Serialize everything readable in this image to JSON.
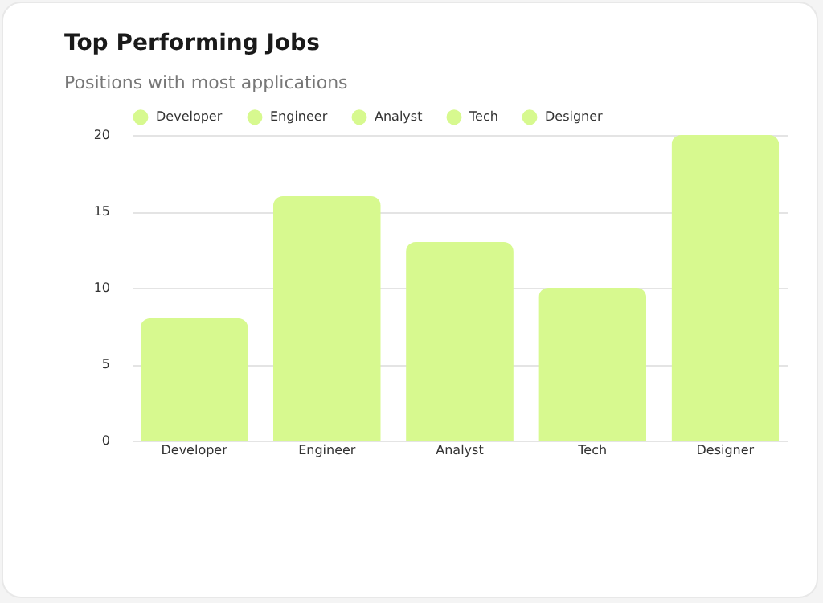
{
  "chart_data": {
    "type": "bar",
    "title": "Top Performing Jobs",
    "subtitle": "Positions with most applications",
    "categories": [
      "Developer",
      "Engineer",
      "Analyst",
      "Tech",
      "Designer"
    ],
    "series": [
      {
        "name": "Developer",
        "color": "#d7f98f",
        "values": [
          8,
          null,
          null,
          null,
          null
        ]
      },
      {
        "name": "Engineer",
        "color": "#d7f98f",
        "values": [
          null,
          16,
          null,
          null,
          null
        ]
      },
      {
        "name": "Analyst",
        "color": "#d7f98f",
        "values": [
          null,
          null,
          13,
          null,
          null
        ]
      },
      {
        "name": "Tech",
        "color": "#d7f98f",
        "values": [
          null,
          null,
          null,
          10,
          null
        ]
      },
      {
        "name": "Designer",
        "color": "#d7f98f",
        "values": [
          null,
          null,
          null,
          null,
          20
        ]
      }
    ],
    "ylim": [
      0,
      20
    ],
    "yticks": [
      0,
      5,
      10,
      15,
      20
    ],
    "grid": "y",
    "legend": "top"
  }
}
